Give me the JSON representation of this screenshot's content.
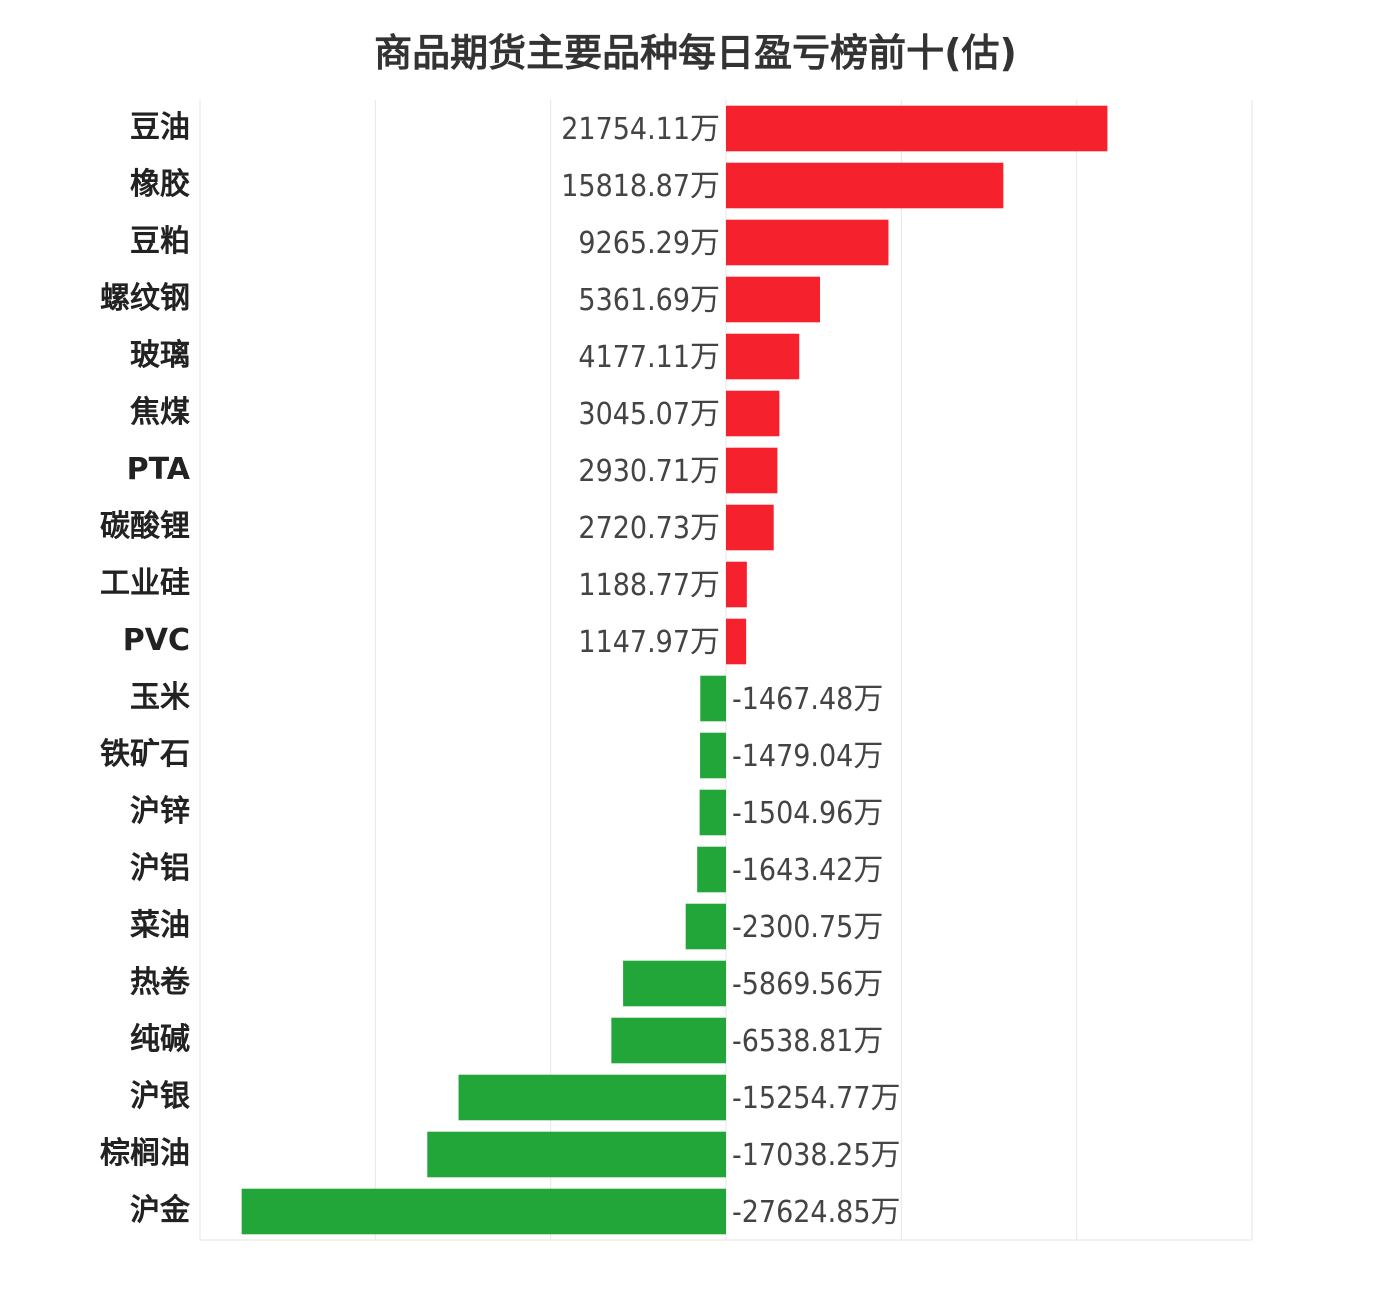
{
  "chart_data": {
    "type": "bar",
    "orientation": "horizontal",
    "title": "商品期货主要品种每日盈亏榜前十(估)",
    "categories": [
      "豆油",
      "橡胶",
      "豆粕",
      "螺纹钢",
      "玻璃",
      "焦煤",
      "PTA",
      "碳酸锂",
      "工业硅",
      "PVC",
      "玉米",
      "铁矿石",
      "沪锌",
      "沪铝",
      "菜油",
      "热卷",
      "纯碱",
      "沪银",
      "棕榈油",
      "沪金"
    ],
    "values": [
      21754.11,
      15818.87,
      9265.29,
      5361.69,
      4177.11,
      3045.07,
      2930.71,
      2720.73,
      1188.77,
      1147.97,
      -1467.48,
      -1479.04,
      -1504.96,
      -1643.42,
      -2300.75,
      -5869.56,
      -6538.81,
      -15254.77,
      -17038.25,
      -27624.85
    ],
    "value_labels": [
      "21754.11万",
      "15818.87万",
      "9265.29万",
      "5361.69万",
      "4177.11万",
      "3045.07万",
      "2930.71万",
      "2720.73万",
      "1188.77万",
      "1147.97万",
      "-1467.48万",
      "-1479.04万",
      "-1504.96万",
      "-1643.42万",
      "-2300.75万",
      "-5869.56万",
      "-6538.81万",
      "-15254.77万",
      "-17038.25万",
      "-27624.85万"
    ],
    "unit": "万",
    "xlim": [
      -30000,
      30000
    ],
    "grid": true,
    "colors": {
      "positive": "#f5222d",
      "negative": "#22a63a",
      "grid": "#e6e6e6"
    }
  }
}
